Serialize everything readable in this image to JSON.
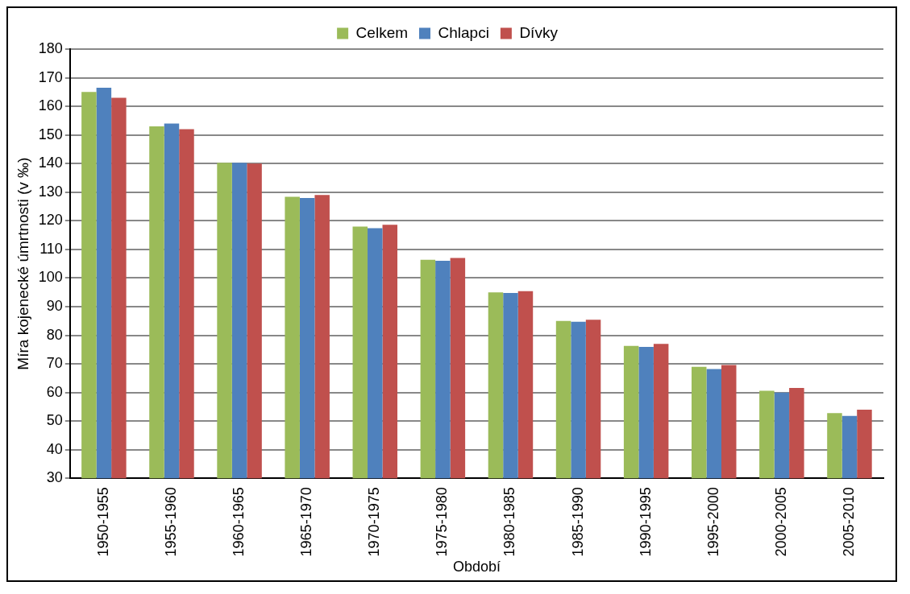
{
  "chart_data": {
    "type": "bar",
    "xlabel": "Období",
    "ylabel": "Míra kojenecké úmrtnosti (v ‰)",
    "categories": [
      "1950-1955",
      "1955-1960",
      "1960-1965",
      "1965-1970",
      "1970-1975",
      "1975-1980",
      "1980-1985",
      "1985-1990",
      "1990-1995",
      "1995-2000",
      "2000-2005",
      "2005-2010"
    ],
    "series": [
      {
        "name": "Celkem",
        "color": "#9bbb59",
        "values": [
          165,
          153,
          140.3,
          128.4,
          118,
          106.4,
          95,
          85,
          76.3,
          69,
          60.6,
          52.8
        ]
      },
      {
        "name": "Chlapci",
        "color": "#4f81bd",
        "values": [
          166.5,
          154,
          140.3,
          128,
          117.4,
          106,
          94.8,
          84.7,
          75.9,
          68.2,
          60,
          51.8
        ]
      },
      {
        "name": "Dívky",
        "color": "#c0504d",
        "values": [
          163,
          152,
          140,
          129,
          118.6,
          107,
          95.4,
          85.4,
          77,
          69.6,
          61.6,
          54
        ]
      }
    ],
    "ylim": [
      30,
      180
    ],
    "yticks": [
      30,
      40,
      50,
      60,
      70,
      80,
      90,
      100,
      110,
      120,
      130,
      140,
      150,
      160,
      170,
      180
    ],
    "grid": "y",
    "legend": "top"
  }
}
